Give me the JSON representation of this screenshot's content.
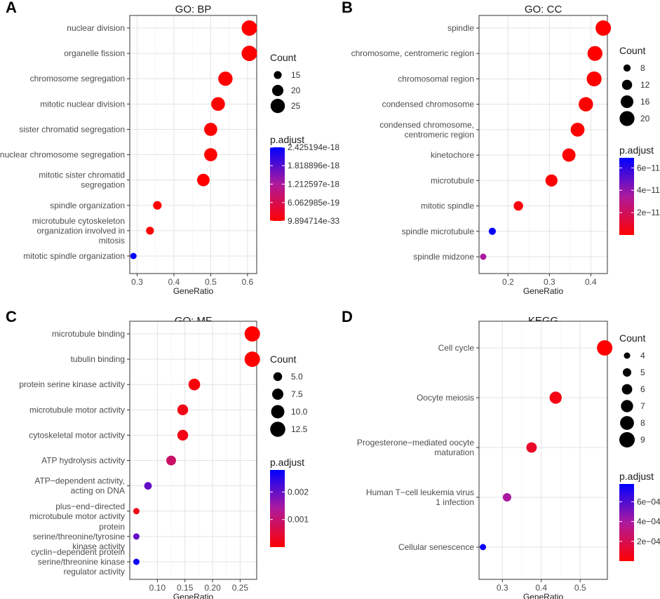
{
  "chart_data": [
    {
      "type": "scatter",
      "panel_letter": "A",
      "title": "GO: BP",
      "xlabel": "GeneRatio",
      "ylabel": "",
      "xlim": [
        0.28,
        0.625
      ],
      "xticks": [
        0.3,
        0.4,
        0.5,
        0.6
      ],
      "xtick_labels": [
        "0.3",
        "0.4",
        "0.5",
        "0.6"
      ],
      "grid": true,
      "categories": [
        [
          "nuclear division"
        ],
        [
          "organelle fission"
        ],
        [
          "chromosome segregation"
        ],
        [
          "mitotic nuclear division"
        ],
        [
          "sister chromatid segregation"
        ],
        [
          "nuclear chromosome segregation"
        ],
        [
          "mitotic sister chromatid",
          "segregation"
        ],
        [
          "spindle organization"
        ],
        [
          "microtubule cytoskeleton",
          "organization involved in",
          "mitosis"
        ],
        [
          "mitotic spindle organization"
        ]
      ],
      "x": [
        0.605,
        0.605,
        0.54,
        0.52,
        0.5,
        0.5,
        0.48,
        0.355,
        0.335,
        0.29
      ],
      "count": [
        27,
        27,
        25,
        24,
        23,
        23,
        22,
        16,
        15,
        13
      ],
      "p_adjust": [
        9.9e-33,
        9.9e-33,
        3e-30,
        1e-28,
        1e-27,
        1e-27,
        1e-26,
        1e-22,
        1e-21,
        2.425194e-18
      ],
      "size_legend": {
        "title": "Count",
        "values": [
          15,
          20,
          25
        ],
        "labels": [
          "15",
          "20",
          "25"
        ]
      },
      "color_legend": {
        "title": "p.adjust",
        "min": 9.894714e-33,
        "max": 2.425194e-18,
        "tick_values": [
          2.425194e-18,
          1.818896e-18,
          1.212597e-18,
          6.062985e-19,
          9.894714e-33
        ],
        "tick_labels": [
          "2.425194e-18",
          "1.818896e-18",
          "1.212597e-18",
          "6.062985e-19",
          "9.894714e-33"
        ]
      },
      "legend_position": "right"
    },
    {
      "type": "scatter",
      "panel_letter": "B",
      "title": "GO: CC",
      "xlabel": "GeneRatio",
      "ylabel": "",
      "xlim": [
        0.13,
        0.44
      ],
      "xticks": [
        0.2,
        0.3,
        0.4
      ],
      "xtick_labels": [
        "0.2",
        "0.3",
        "0.4"
      ],
      "grid": true,
      "categories": [
        [
          "spindle"
        ],
        [
          "chromosome, centromeric region"
        ],
        [
          "chromosomal region"
        ],
        [
          "condensed chromosome"
        ],
        [
          "condensed chromosome,",
          "centromeric region"
        ],
        [
          "kinetochore"
        ],
        [
          "microtubule"
        ],
        [
          "mitotic spindle"
        ],
        [
          "spindle microtubule"
        ],
        [
          "spindle midzone"
        ]
      ],
      "x": [
        0.43,
        0.41,
        0.408,
        0.388,
        0.368,
        0.347,
        0.305,
        0.225,
        0.162,
        0.14
      ],
      "count": [
        21,
        20,
        20,
        19,
        18,
        17,
        15,
        11,
        8,
        7
      ],
      "p_adjust": [
        1e-15,
        1e-15,
        1e-15,
        1e-14,
        1e-13,
        1e-13,
        1e-12,
        3e-12,
        6.8e-11,
        3.5e-11
      ],
      "size_legend": {
        "title": "Count",
        "values": [
          8,
          12,
          16,
          20
        ],
        "labels": [
          "8",
          "12",
          "16",
          "20"
        ]
      },
      "color_legend": {
        "title": "p.adjust",
        "min": 1e-15,
        "max": 6.9e-11,
        "tick_values": [
          6e-11,
          4e-11,
          2e-11
        ],
        "tick_labels": [
          "6e−11",
          "4e−11",
          "2e−11"
        ]
      },
      "legend_position": "right"
    },
    {
      "type": "scatter",
      "panel_letter": "C",
      "title": "GO: MF",
      "xlabel": "GeneRatio",
      "ylabel": "",
      "xlim": [
        0.05,
        0.28
      ],
      "xticks": [
        0.1,
        0.15,
        0.2,
        0.25
      ],
      "xtick_labels": [
        "0.10",
        "0.15",
        "0.20",
        "0.25"
      ],
      "grid": true,
      "categories": [
        [
          "microtubule binding"
        ],
        [
          "tubulin binding"
        ],
        [
          "protein serine kinase activity"
        ],
        [
          "microtubule motor activity"
        ],
        [
          "cytoskeletal motor activity"
        ],
        [
          "ATP hydrolysis activity"
        ],
        [
          "ATP−dependent activity,",
          "acting on DNA"
        ],
        [
          "plus−end−directed",
          "microtubule motor activity"
        ],
        [
          "protein",
          "serine/threonine/tyrosine",
          "kinase activity"
        ],
        [
          "cyclin−dependent protein",
          "serine/threonine kinase",
          "regulator activity"
        ]
      ],
      "x": [
        0.272,
        0.272,
        0.167,
        0.146,
        0.146,
        0.125,
        0.083,
        0.062,
        0.062,
        0.062
      ],
      "count": [
        13,
        13,
        8,
        7,
        7,
        6,
        4,
        3,
        3,
        3
      ],
      "p_adjust": [
        1e-07,
        1e-07,
        0.0001,
        0.0002,
        0.0002,
        0.0009,
        0.002,
        0.0002,
        0.002,
        0.0027
      ],
      "size_legend": {
        "title": "Count",
        "values": [
          5.0,
          7.5,
          10.0,
          12.5
        ],
        "labels": [
          "5.0",
          "7.5",
          "10.0",
          "12.5"
        ]
      },
      "color_legend": {
        "title": "p.adjust",
        "min": 0.0,
        "max": 0.0028,
        "tick_values": [
          0.002,
          0.001
        ],
        "tick_labels": [
          "0.002",
          "0.001"
        ]
      },
      "legend_position": "right"
    },
    {
      "type": "scatter",
      "panel_letter": "D",
      "title": "KEGG",
      "xlabel": "GeneRatio",
      "ylabel": "",
      "xlim": [
        0.24,
        0.57
      ],
      "xticks": [
        0.3,
        0.4,
        0.5
      ],
      "xtick_labels": [
        "0.3",
        "0.4",
        "0.5"
      ],
      "grid": true,
      "categories": [
        [
          "Cell cycle"
        ],
        [
          "Oocyte meiosis"
        ],
        [
          "Progesterone−mediated oocyte",
          "maturation"
        ],
        [
          "Human T−cell leukemia virus",
          "1 infection"
        ],
        [
          "Cellular senescence"
        ]
      ],
      "x": [
        0.563,
        0.437,
        0.375,
        0.312,
        0.25
      ],
      "count": [
        9,
        7,
        6,
        5,
        4
      ],
      "p_adjust": [
        1e-06,
        5e-05,
        0.0001,
        0.0004,
        0.00075
      ],
      "size_legend": {
        "title": "Count",
        "values": [
          4,
          5,
          6,
          7,
          8,
          9
        ],
        "labels": [
          "4",
          "5",
          "6",
          "7",
          "8",
          "9"
        ]
      },
      "color_legend": {
        "title": "p.adjust",
        "min": 0.0,
        "max": 0.00078,
        "tick_values": [
          0.0006,
          0.0004,
          0.0002
        ],
        "tick_labels": [
          "6e−04",
          "4e−04",
          "2e−04"
        ]
      },
      "legend_position": "right"
    }
  ]
}
